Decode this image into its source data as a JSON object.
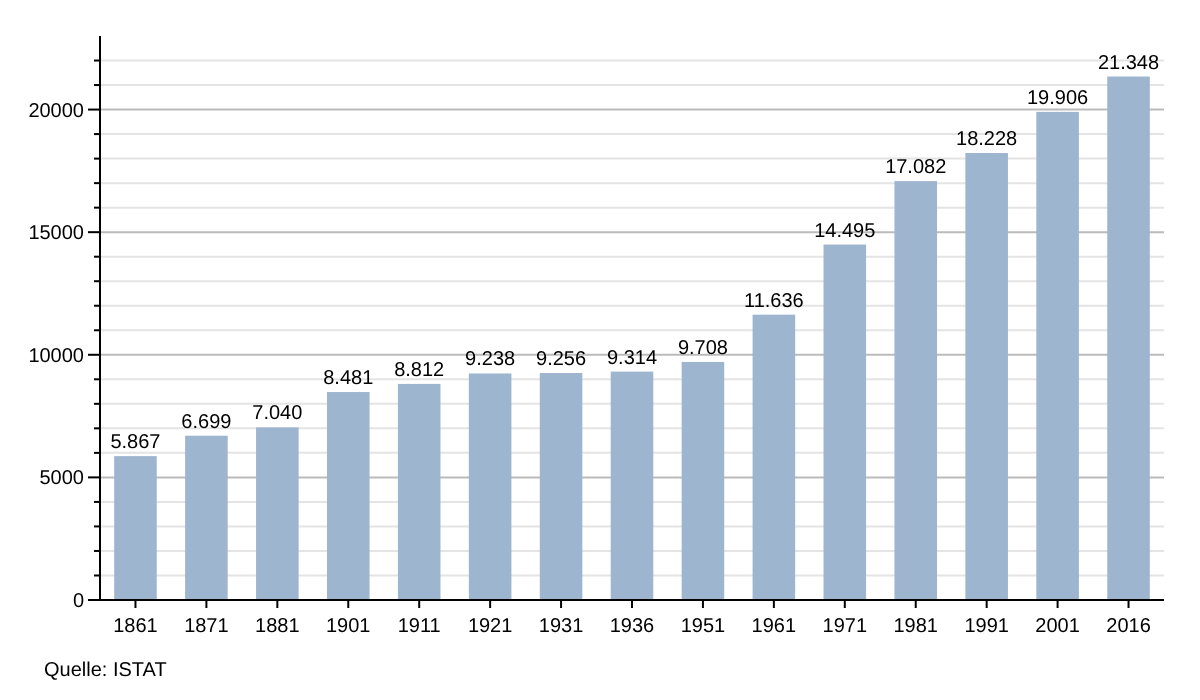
{
  "chart_data": {
    "type": "bar",
    "categories": [
      "1861",
      "1871",
      "1881",
      "1901",
      "1911",
      "1921",
      "1931",
      "1936",
      "1951",
      "1961",
      "1971",
      "1981",
      "1991",
      "2001",
      "2016"
    ],
    "values": [
      5867,
      6699,
      7040,
      8481,
      8812,
      9238,
      9256,
      9314,
      9708,
      11636,
      14495,
      17082,
      18228,
      19906,
      21348
    ],
    "value_labels": [
      "5.867",
      "6.699",
      "7.040",
      "8.481",
      "8.812",
      "9.238",
      "9.256",
      "9.314",
      "9.708",
      "11.636",
      "14.495",
      "17.082",
      "18.228",
      "19.906",
      "21.348"
    ],
    "color": "#9db5cf",
    "ylim": [
      0,
      23000
    ],
    "yticks": [
      0,
      {
        "value": 1000,
        "label": null
      },
      {
        "value": 2000,
        "label": null
      },
      {
        "value": 3000,
        "label": null
      },
      {
        "value": 4000,
        "label": null
      },
      5000,
      {
        "value": 6000,
        "label": null
      },
      {
        "value": 7000,
        "label": null
      },
      {
        "value": 8000,
        "label": null
      },
      {
        "value": 9000,
        "label": null
      },
      10000,
      {
        "value": 11000,
        "label": null
      },
      {
        "value": 12000,
        "label": null
      },
      {
        "value": 13000,
        "label": null
      },
      {
        "value": 14000,
        "label": null
      },
      15000,
      {
        "value": 16000,
        "label": null
      },
      {
        "value": 17000,
        "label": null
      },
      {
        "value": 18000,
        "label": null
      },
      {
        "value": 19000,
        "label": null
      },
      20000,
      {
        "value": 21000,
        "label": null
      },
      {
        "value": 22000,
        "label": null
      }
    ],
    "grid": "y",
    "annotations": [
      "Quelle: ISTAT"
    ]
  }
}
